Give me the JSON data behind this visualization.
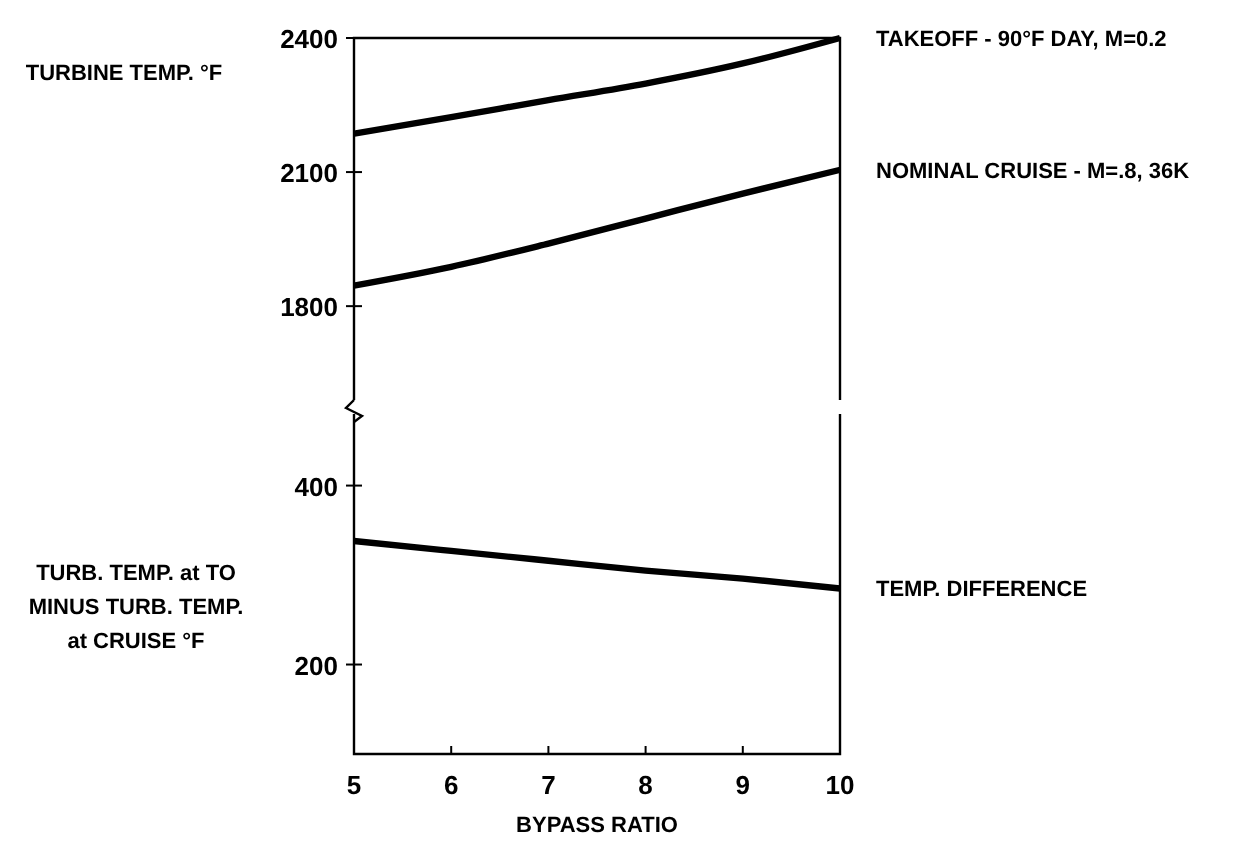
{
  "chart_data": [
    {
      "type": "line",
      "ylabel": "TURBINE TEMP. °F",
      "x": [
        5,
        6,
        7,
        8,
        9,
        10
      ],
      "xlim": [
        5,
        10
      ],
      "ylim": [
        1590,
        2400
      ],
      "yticks": [
        1800,
        2100,
        2400
      ],
      "tick_labels": "y",
      "grid": false,
      "marker": "none",
      "line_style": "solid",
      "series": [
        {
          "name": "TAKEOFF - 90°F DAY, M=0.2",
          "color": "#000000",
          "values": [
            2186,
            2223,
            2261,
            2298,
            2343,
            2400
          ]
        },
        {
          "name": "NOMINAL CRUISE - M=.8, 36K",
          "color": "#000000",
          "values": [
            1846,
            1888,
            1940,
            1996,
            2052,
            2105
          ]
        }
      ]
    },
    {
      "type": "line",
      "ylabel": "TURB. TEMP. at TO\nMINUS TURB. TEMP.\nat CRUISE °F",
      "xlabel": "BYPASS RATIO",
      "x": [
        5,
        6,
        7,
        8,
        9,
        10
      ],
      "xlim": [
        5,
        10
      ],
      "xticks": [
        5,
        6,
        7,
        8,
        9,
        10
      ],
      "ylim": [
        100,
        480
      ],
      "yticks": [
        200,
        400
      ],
      "grid": false,
      "marker": "none",
      "line_style": "solid",
      "series": [
        {
          "name": "TEMP. DIFFERENCE",
          "color": "#000000",
          "values": [
            338,
            327,
            316,
            305,
            296,
            285
          ]
        }
      ]
    }
  ]
}
